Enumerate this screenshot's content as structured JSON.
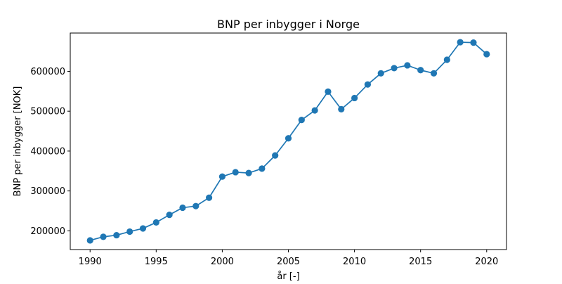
{
  "chart_data": {
    "type": "line",
    "title": "BNP per inbygger i Norge",
    "xlabel": "år [-]",
    "ylabel": "BNP per inbygger [NOK]",
    "xlim": [
      1988.5,
      2021.5
    ],
    "ylim": [
      153000,
      696000
    ],
    "xticks": [
      1990,
      1995,
      2000,
      2005,
      2010,
      2015,
      2020
    ],
    "xtick_labels": [
      "1990",
      "1995",
      "2000",
      "2005",
      "2010",
      "2015",
      "2020"
    ],
    "yticks": [
      200000,
      300000,
      400000,
      500000,
      600000
    ],
    "ytick_labels": [
      "200000",
      "300000",
      "400000",
      "500000",
      "600000"
    ],
    "grid": false,
    "color": "#1f77b4",
    "marker": "circle",
    "series": [
      {
        "x": [
          1990,
          1991,
          1992,
          1993,
          1994,
          1995,
          1996,
          1997,
          1998,
          1999,
          2000,
          2001,
          2002,
          2003,
          2004,
          2005,
          2006,
          2007,
          2008,
          2009,
          2010,
          2011,
          2012,
          2013,
          2014,
          2015,
          2016,
          2017,
          2018,
          2019,
          2020
        ],
        "y": [
          176000,
          185000,
          189000,
          198000,
          206000,
          221000,
          240000,
          258000,
          262000,
          283000,
          336000,
          347000,
          345000,
          356000,
          389000,
          432000,
          478000,
          502000,
          549000,
          505000,
          533000,
          567000,
          595000,
          608000,
          615000,
          603000,
          595000,
          629000,
          673000,
          672000,
          643000
        ]
      }
    ]
  }
}
